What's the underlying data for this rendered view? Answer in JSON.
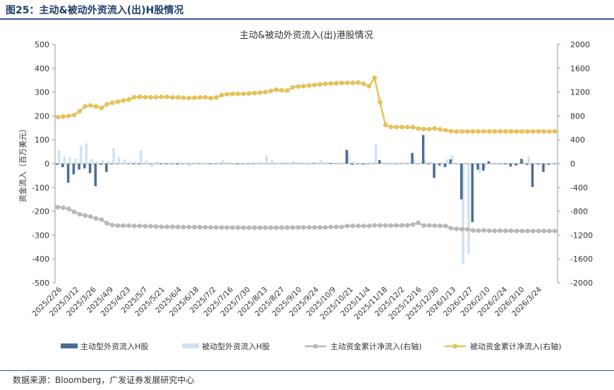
{
  "figure_label": "图25：主动&被动外资流入(出)H股情况",
  "source": "数据来源：Bloomberg，广发证券发展研究中心",
  "colors": {
    "active_bar": "#4a6d94",
    "passive_bar": "#cfe2f3",
    "active_cum": "#b9b9b9",
    "passive_cum": "#e6c25a",
    "rule": "#2f5597"
  },
  "chart_data": {
    "type": "bar",
    "title": "主动&被动外资流入(出)港股情况",
    "ylabel": "资金流入（百万美元）",
    "ylim": [
      -500,
      500
    ],
    "yticks": [
      -500,
      -400,
      -300,
      -200,
      -100,
      0,
      100,
      200,
      300,
      400,
      500
    ],
    "y2lim": [
      -2000,
      2000
    ],
    "y2ticks": [
      -2000,
      -1600,
      -1200,
      -800,
      -400,
      0,
      400,
      800,
      1200,
      1600,
      2000
    ],
    "x_tick_labels": [
      "2025/2/26",
      "2025/3/12",
      "2025/3/26",
      "2025/4/9",
      "2025/4/23",
      "2025/5/7",
      "2025/5/21",
      "2025/6/4",
      "2025/6/18",
      "2025/7/2",
      "2025/7/16",
      "2025/7/30",
      "2025/8/13",
      "2025/8/27",
      "2025/9/10",
      "2025/9/24",
      "2025/10/9",
      "2025/10/21",
      "2025/11/4",
      "2025/11/18",
      "2025/12/2",
      "2025/12/16",
      "2025/12/30",
      "2026/1/13",
      "2026/1/27",
      "2026/2/10",
      "2026/2/24",
      "2026/3/10",
      "2026/3/24"
    ],
    "legend_position": "bottom",
    "series": [
      {
        "name": "主动型外资流入H股",
        "type": "bar",
        "axis": "left",
        "values": [
          -5,
          -15,
          -80,
          -45,
          -25,
          -20,
          -40,
          -95,
          -5,
          -35,
          -3,
          -2,
          0,
          -2,
          -3,
          -3,
          0,
          -2,
          -1,
          -3,
          -3,
          -2,
          -4,
          -2,
          -2,
          0,
          -2,
          -1,
          -3,
          -2,
          -2,
          -1,
          -1,
          -3,
          -2,
          0,
          -2,
          -1,
          -1,
          0,
          0,
          1,
          0,
          1,
          1,
          -1,
          0,
          2,
          -1,
          0,
          3,
          0,
          0,
          58,
          -5,
          -2,
          -3,
          -2,
          0,
          15,
          0,
          0,
          -2,
          0,
          0,
          45,
          0,
          120,
          -3,
          -60,
          -8,
          -15,
          18,
          0,
          -150,
          0,
          -245,
          -25,
          -30,
          10,
          0,
          -2,
          -3,
          -12,
          -8,
          20,
          -5,
          -98,
          -3,
          -35,
          -5,
          -2
        ]
      },
      {
        "name": "被动型外资流入H股",
        "type": "bar",
        "axis": "left",
        "values": [
          55,
          30,
          25,
          20,
          75,
          85,
          20,
          10,
          15,
          10,
          65,
          28,
          18,
          10,
          8,
          55,
          12,
          -15,
          8,
          5,
          3,
          5,
          8,
          5,
          -10,
          5,
          5,
          3,
          5,
          5,
          15,
          5,
          3,
          5,
          3,
          5,
          5,
          8,
          35,
          15,
          5,
          8,
          5,
          10,
          8,
          5,
          5,
          5,
          15,
          8,
          5,
          5,
          5,
          45,
          10,
          5,
          -8,
          5,
          80,
          5,
          5,
          5,
          3,
          5,
          -3,
          15,
          -5,
          15,
          10,
          3,
          5,
          18,
          35,
          -5,
          -420,
          -380,
          -5,
          -40,
          -20,
          -5,
          -3,
          -5,
          -5,
          -5,
          -5,
          15,
          30,
          -5,
          -10,
          -8,
          -3,
          -5
        ]
      },
      {
        "name": "主动资金累计净流入(右轴)",
        "type": "line",
        "axis": "right",
        "values": [
          -730,
          -740,
          -760,
          -810,
          -850,
          -870,
          -890,
          -920,
          -940,
          -1000,
          -1030,
          -1040,
          -1040,
          -1040,
          -1045,
          -1045,
          -1050,
          -1050,
          -1055,
          -1060,
          -1060,
          -1060,
          -1063,
          -1065,
          -1065,
          -1065,
          -1066,
          -1068,
          -1070,
          -1070,
          -1072,
          -1072,
          -1073,
          -1073,
          -1074,
          -1074,
          -1074,
          -1075,
          -1075,
          -1075,
          -1074,
          -1073,
          -1073,
          -1071,
          -1071,
          -1070,
          -1070,
          -1070,
          -1070,
          -1070,
          -1063,
          -1063,
          -1063,
          -1046,
          -1045,
          -1043,
          -1045,
          -1045,
          -1036,
          -1036,
          -1038,
          -1041,
          -1037,
          -1036,
          -1035,
          -1023,
          -995,
          -1040,
          -1036,
          -1040,
          -1045,
          -1045,
          -1085,
          -1095,
          -1100,
          -1103,
          -1120,
          -1125,
          -1120,
          -1125,
          -1130,
          -1125,
          -1128,
          -1125,
          -1130,
          -1130,
          -1130,
          -1130,
          -1130,
          -1130,
          -1130,
          -1130
        ]
      },
      {
        "name": "被动资金累计净流入(右轴)",
        "type": "line",
        "axis": "right",
        "values": [
          780,
          790,
          800,
          815,
          880,
          960,
          975,
          960,
          935,
          995,
          1020,
          1040,
          1060,
          1075,
          1115,
          1120,
          1115,
          1110,
          1115,
          1120,
          1120,
          1110,
          1110,
          1105,
          1100,
          1105,
          1110,
          1115,
          1100,
          1110,
          1150,
          1165,
          1170,
          1172,
          1170,
          1178,
          1185,
          1190,
          1200,
          1220,
          1240,
          1230,
          1225,
          1280,
          1295,
          1300,
          1310,
          1320,
          1330,
          1340,
          1345,
          1350,
          1355,
          1355,
          1355,
          1360,
          1340,
          1300,
          1440,
          1030,
          650,
          615,
          615,
          615,
          610,
          610,
          590,
          580,
          580,
          590,
          575,
          560,
          545,
          538,
          540,
          540,
          540,
          540,
          540,
          540,
          540,
          540,
          540,
          540,
          540,
          540,
          540,
          540,
          540,
          540,
          540,
          540
        ]
      }
    ]
  }
}
